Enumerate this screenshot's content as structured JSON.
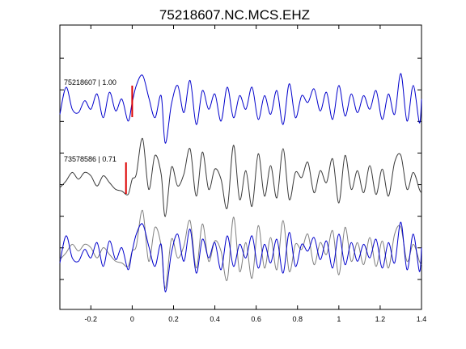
{
  "chart_data": {
    "type": "line",
    "title": "75218607.NC.MCS.EHZ",
    "xlabel": "",
    "ylabel": "",
    "xlim": [
      -0.35,
      1.4
    ],
    "x_ticks": [
      -0.2,
      0,
      0.2,
      0.4,
      0.6,
      0.8,
      1,
      1.2,
      1.4
    ],
    "x_tick_labels": [
      "-0.2",
      "0",
      "0.2",
      "0.4",
      "0.6",
      "0.8",
      "1",
      "1.2",
      "1.4"
    ],
    "y_ticks_unlabeled": 8,
    "grid": false,
    "legend": "none",
    "colors": {
      "master": "#0000cc",
      "neighbor": "#3a3a3a",
      "neighbor_overlay": "#808080",
      "pick": "#dd0000",
      "axes": "#000000"
    },
    "panels": [
      {
        "label": "75218607 | 1.00",
        "pick_time": 0.0,
        "series": [
          {
            "color": "#0000cc",
            "trace": "master"
          }
        ]
      },
      {
        "label": "73578586 | 0.71",
        "pick_time": -0.03,
        "series": [
          {
            "color": "#3a3a3a",
            "trace": "neighbor"
          }
        ]
      },
      {
        "label": "",
        "pick_time": null,
        "series": [
          {
            "color": "#808080",
            "trace": "neighbor"
          },
          {
            "color": "#0000cc",
            "trace": "master"
          }
        ]
      }
    ],
    "traces": {
      "master": {
        "x": [
          -0.35,
          -0.32,
          -0.29,
          -0.26,
          -0.23,
          -0.2,
          -0.17,
          -0.14,
          -0.11,
          -0.08,
          -0.05,
          -0.02,
          0.0,
          0.02,
          0.05,
          0.08,
          0.11,
          0.14,
          0.16,
          0.19,
          0.22,
          0.25,
          0.28,
          0.31,
          0.34,
          0.37,
          0.4,
          0.43,
          0.46,
          0.49,
          0.52,
          0.55,
          0.58,
          0.61,
          0.64,
          0.67,
          0.7,
          0.73,
          0.76,
          0.79,
          0.82,
          0.85,
          0.88,
          0.91,
          0.94,
          0.97,
          1.0,
          1.03,
          1.06,
          1.09,
          1.12,
          1.15,
          1.18,
          1.21,
          1.24,
          1.27,
          1.3,
          1.33,
          1.36,
          1.39,
          1.4
        ],
        "y": [
          -0.25,
          0.55,
          -0.1,
          -0.2,
          0.15,
          -0.1,
          0.35,
          -0.35,
          0.4,
          -0.15,
          0.2,
          -0.45,
          0.1,
          0.6,
          0.9,
          0.25,
          -0.35,
          0.3,
          -1.1,
          0.05,
          0.6,
          -0.2,
          0.75,
          -0.55,
          0.45,
          -0.1,
          0.35,
          -0.45,
          0.55,
          -0.35,
          0.3,
          -0.1,
          0.55,
          -0.4,
          0.3,
          -0.25,
          0.45,
          -0.55,
          0.65,
          -0.35,
          0.3,
          0.1,
          0.5,
          -0.15,
          0.4,
          -0.4,
          0.6,
          -0.3,
          0.35,
          -0.2,
          0.3,
          -0.1,
          0.45,
          -0.4,
          0.35,
          -0.25,
          0.95,
          -0.45,
          0.6,
          -0.5,
          0.2
        ]
      },
      "neighbor": {
        "x": [
          -0.35,
          -0.32,
          -0.29,
          -0.26,
          -0.23,
          -0.2,
          -0.17,
          -0.14,
          -0.11,
          -0.08,
          -0.05,
          -0.02,
          0.0,
          0.02,
          0.05,
          0.08,
          0.11,
          0.14,
          0.16,
          0.19,
          0.22,
          0.25,
          0.28,
          0.31,
          0.34,
          0.37,
          0.4,
          0.43,
          0.46,
          0.49,
          0.52,
          0.55,
          0.58,
          0.61,
          0.64,
          0.67,
          0.7,
          0.73,
          0.76,
          0.79,
          0.82,
          0.85,
          0.88,
          0.91,
          0.94,
          0.97,
          1.0,
          1.03,
          1.06,
          1.09,
          1.12,
          1.15,
          1.18,
          1.21,
          1.24,
          1.27,
          1.3,
          1.33,
          1.36,
          1.39,
          1.4
        ],
        "y": [
          -0.15,
          0.05,
          0.3,
          0.1,
          0.3,
          0.2,
          -0.1,
          0.2,
          0.0,
          -0.2,
          -0.25,
          -0.35,
          0.1,
          0.25,
          1.3,
          -0.2,
          0.8,
          0.25,
          -1.0,
          0.45,
          -0.1,
          0.25,
          1.0,
          -0.4,
          0.9,
          -0.2,
          0.4,
          0.1,
          -0.75,
          1.1,
          -0.5,
          0.35,
          -0.7,
          0.85,
          -0.4,
          0.5,
          -0.45,
          1.0,
          -0.5,
          0.3,
          0.15,
          0.6,
          -0.3,
          0.35,
          0.0,
          0.7,
          -0.6,
          0.8,
          -0.2,
          0.35,
          -0.3,
          0.5,
          -0.35,
          0.4,
          -0.4,
          0.6,
          0.8,
          -0.2,
          0.3,
          -0.2,
          -0.3
        ]
      }
    }
  }
}
